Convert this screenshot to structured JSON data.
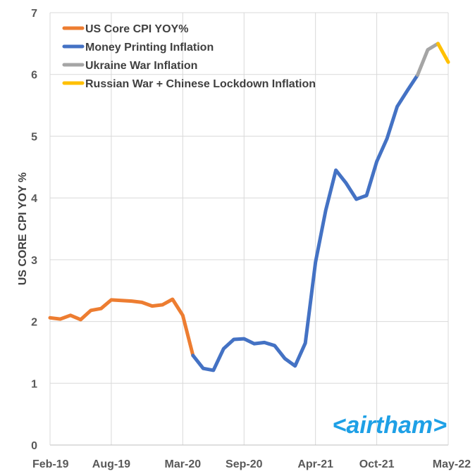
{
  "chart_data": {
    "type": "line",
    "title": "",
    "xlabel": "",
    "ylabel": "US CORE CPI YOY %",
    "ylim": [
      0,
      7
    ],
    "yticks": [
      "0",
      "1",
      "2",
      "3",
      "4",
      "5",
      "6",
      "7"
    ],
    "xticks": [
      "Feb-19",
      "Aug-19",
      "Mar-20",
      "Sep-20",
      "Apr-21",
      "Oct-21",
      "May-22"
    ],
    "grid": true,
    "legend_position": "top-left",
    "series": [
      {
        "name": "US Core CPI YOY%",
        "color": "#ed7d31",
        "points": [
          [
            "Feb-19",
            2.06
          ],
          [
            "Mar-19",
            2.04
          ],
          [
            "Apr-19",
            2.1
          ],
          [
            "May-19",
            2.03
          ],
          [
            "Jun-19",
            2.18
          ],
          [
            "Jul-19",
            2.21
          ],
          [
            "Aug-19",
            2.35
          ],
          [
            "Sep-19",
            2.34
          ],
          [
            "Oct-19",
            2.33
          ],
          [
            "Nov-19",
            2.31
          ],
          [
            "Dec-19",
            2.25
          ],
          [
            "Jan-20",
            2.27
          ],
          [
            "Feb-20",
            2.36
          ],
          [
            "Mar-20",
            2.1
          ],
          [
            "Apr-20",
            1.45
          ]
        ]
      },
      {
        "name": "Money Printing Inflation",
        "color": "#4472c4",
        "points": [
          [
            "Apr-20",
            1.45
          ],
          [
            "May-20",
            1.24
          ],
          [
            "Jun-20",
            1.21
          ],
          [
            "Jul-20",
            1.56
          ],
          [
            "Aug-20",
            1.71
          ],
          [
            "Sep-20",
            1.72
          ],
          [
            "Oct-20",
            1.64
          ],
          [
            "Nov-20",
            1.66
          ],
          [
            "Dec-20",
            1.61
          ],
          [
            "Jan-21",
            1.4
          ],
          [
            "Feb-21",
            1.28
          ],
          [
            "Mar-21",
            1.65
          ],
          [
            "Apr-21",
            2.96
          ],
          [
            "May-21",
            3.8
          ],
          [
            "Jun-21",
            4.45
          ],
          [
            "Jul-21",
            4.24
          ],
          [
            "Aug-21",
            3.98
          ],
          [
            "Sep-21",
            4.04
          ],
          [
            "Oct-21",
            4.59
          ],
          [
            "Nov-21",
            4.96
          ],
          [
            "Dec-21",
            5.48
          ],
          [
            "Jan-22",
            5.74
          ],
          [
            "Feb-22",
            5.99
          ]
        ]
      },
      {
        "name": "Ukraine War Inflation",
        "color": "#a5a5a5",
        "points": [
          [
            "Feb-22",
            5.99
          ],
          [
            "Mar-22",
            6.4
          ],
          [
            "Apr-22",
            6.5
          ]
        ]
      },
      {
        "name": "Russian War + Chinese Lockdown Inflation",
        "color": "#ffc000",
        "points": [
          [
            "Apr-22",
            6.5
          ],
          [
            "May-22",
            6.2
          ]
        ]
      }
    ],
    "watermark": "<airtham>"
  }
}
